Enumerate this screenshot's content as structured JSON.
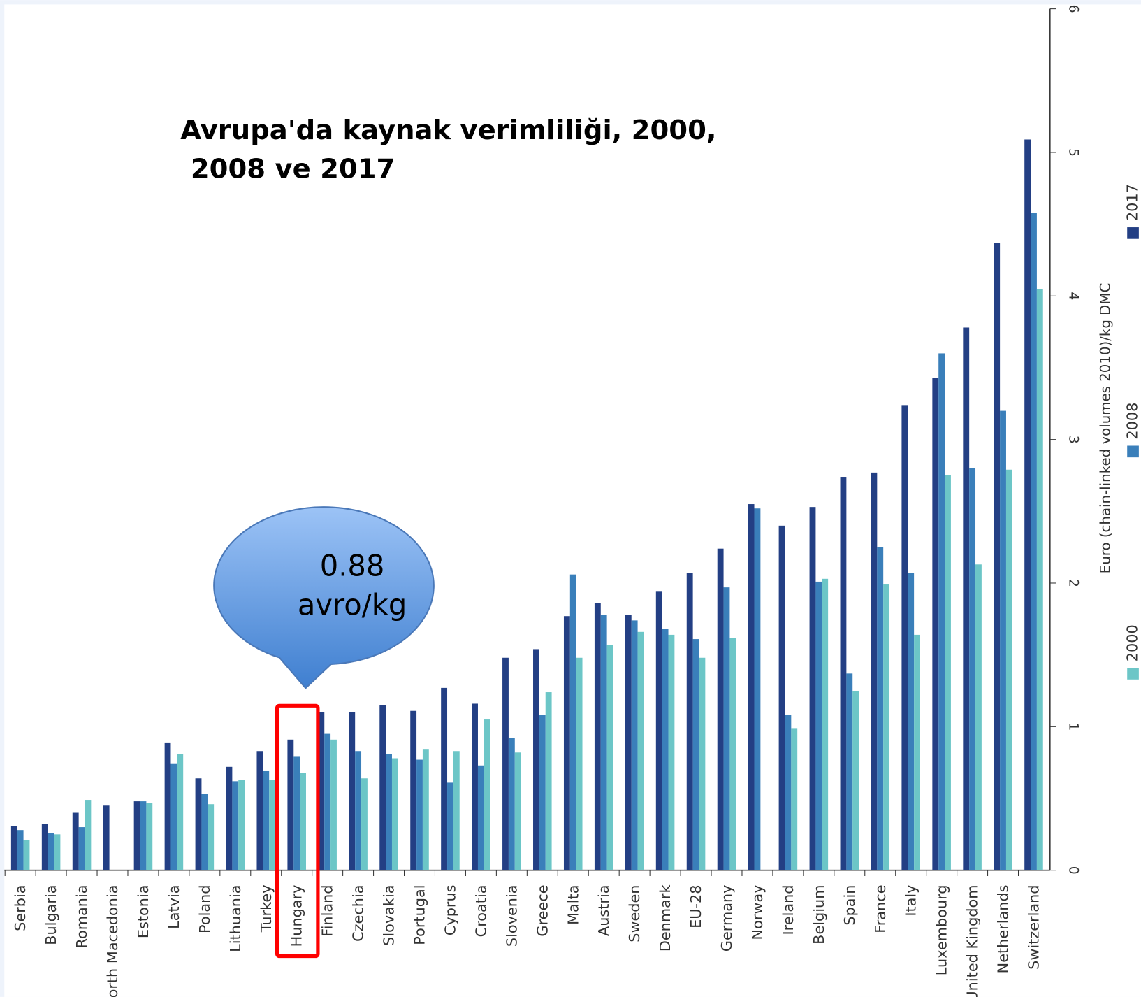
{
  "chart_data": {
    "type": "bar",
    "title": [
      "Avrupa'da kaynak verimliliği, 2000,",
      "2008 ve 2017"
    ],
    "annotation": [
      "0.88",
      "avro/kg"
    ],
    "ylabel": "Euro (chain-linked volumes 2010)/kg DMC",
    "categories": [
      "Serbia",
      "Bulgaria",
      "Romania",
      "North Macedonia",
      "Estonia",
      "Latvia",
      "Poland",
      "Lithuania",
      "Turkey",
      "Hungary",
      "Finland",
      "Czechia",
      "Slovakia",
      "Portugal",
      "Cyprus",
      "Croatia",
      "Slovenia",
      "Greece",
      "Malta",
      "Austria",
      "Sweden",
      "Denmark",
      "EU-28",
      "Germany",
      "Norway",
      "Ireland",
      "Belgium",
      "Spain",
      "France",
      "Italy",
      "Luxembourg",
      "United Kingdom",
      "Netherlands",
      "Switzerland"
    ],
    "series": [
      {
        "name": "2017",
        "color": "#233f84",
        "values": [
          0.31,
          0.32,
          0.4,
          0.45,
          0.48,
          0.89,
          0.64,
          0.72,
          0.83,
          0.91,
          1.1,
          1.1,
          1.15,
          1.11,
          1.27,
          1.16,
          1.48,
          1.54,
          1.77,
          1.86,
          1.78,
          1.94,
          2.07,
          2.24,
          2.55,
          2.4,
          2.53,
          2.74,
          2.77,
          3.24,
          3.43,
          3.78,
          4.37,
          5.09
        ]
      },
      {
        "name": "2008",
        "color": "#3a7fba",
        "values": [
          0.28,
          0.26,
          0.3,
          null,
          0.48,
          0.74,
          0.53,
          0.62,
          0.69,
          0.79,
          0.95,
          0.83,
          0.81,
          0.77,
          0.61,
          0.73,
          0.92,
          1.08,
          2.06,
          1.78,
          1.74,
          1.68,
          1.61,
          1.97,
          2.52,
          1.08,
          2.01,
          1.37,
          2.25,
          2.07,
          3.6,
          2.8,
          3.2,
          4.58
        ]
      },
      {
        "name": "2000",
        "color": "#6cc6c7",
        "values": [
          0.21,
          0.25,
          0.49,
          null,
          0.47,
          0.81,
          0.46,
          0.63,
          0.63,
          0.68,
          0.91,
          0.64,
          0.78,
          0.84,
          0.83,
          1.05,
          0.82,
          1.24,
          1.48,
          1.57,
          1.66,
          1.64,
          1.48,
          1.62,
          null,
          0.99,
          2.03,
          1.25,
          1.99,
          1.64,
          2.75,
          2.13,
          2.79,
          4.05
        ]
      }
    ],
    "highlight": "Hungary",
    "ylim": [
      0,
      6
    ],
    "yticks": [
      0,
      1,
      2,
      3,
      4,
      5,
      6
    ]
  }
}
